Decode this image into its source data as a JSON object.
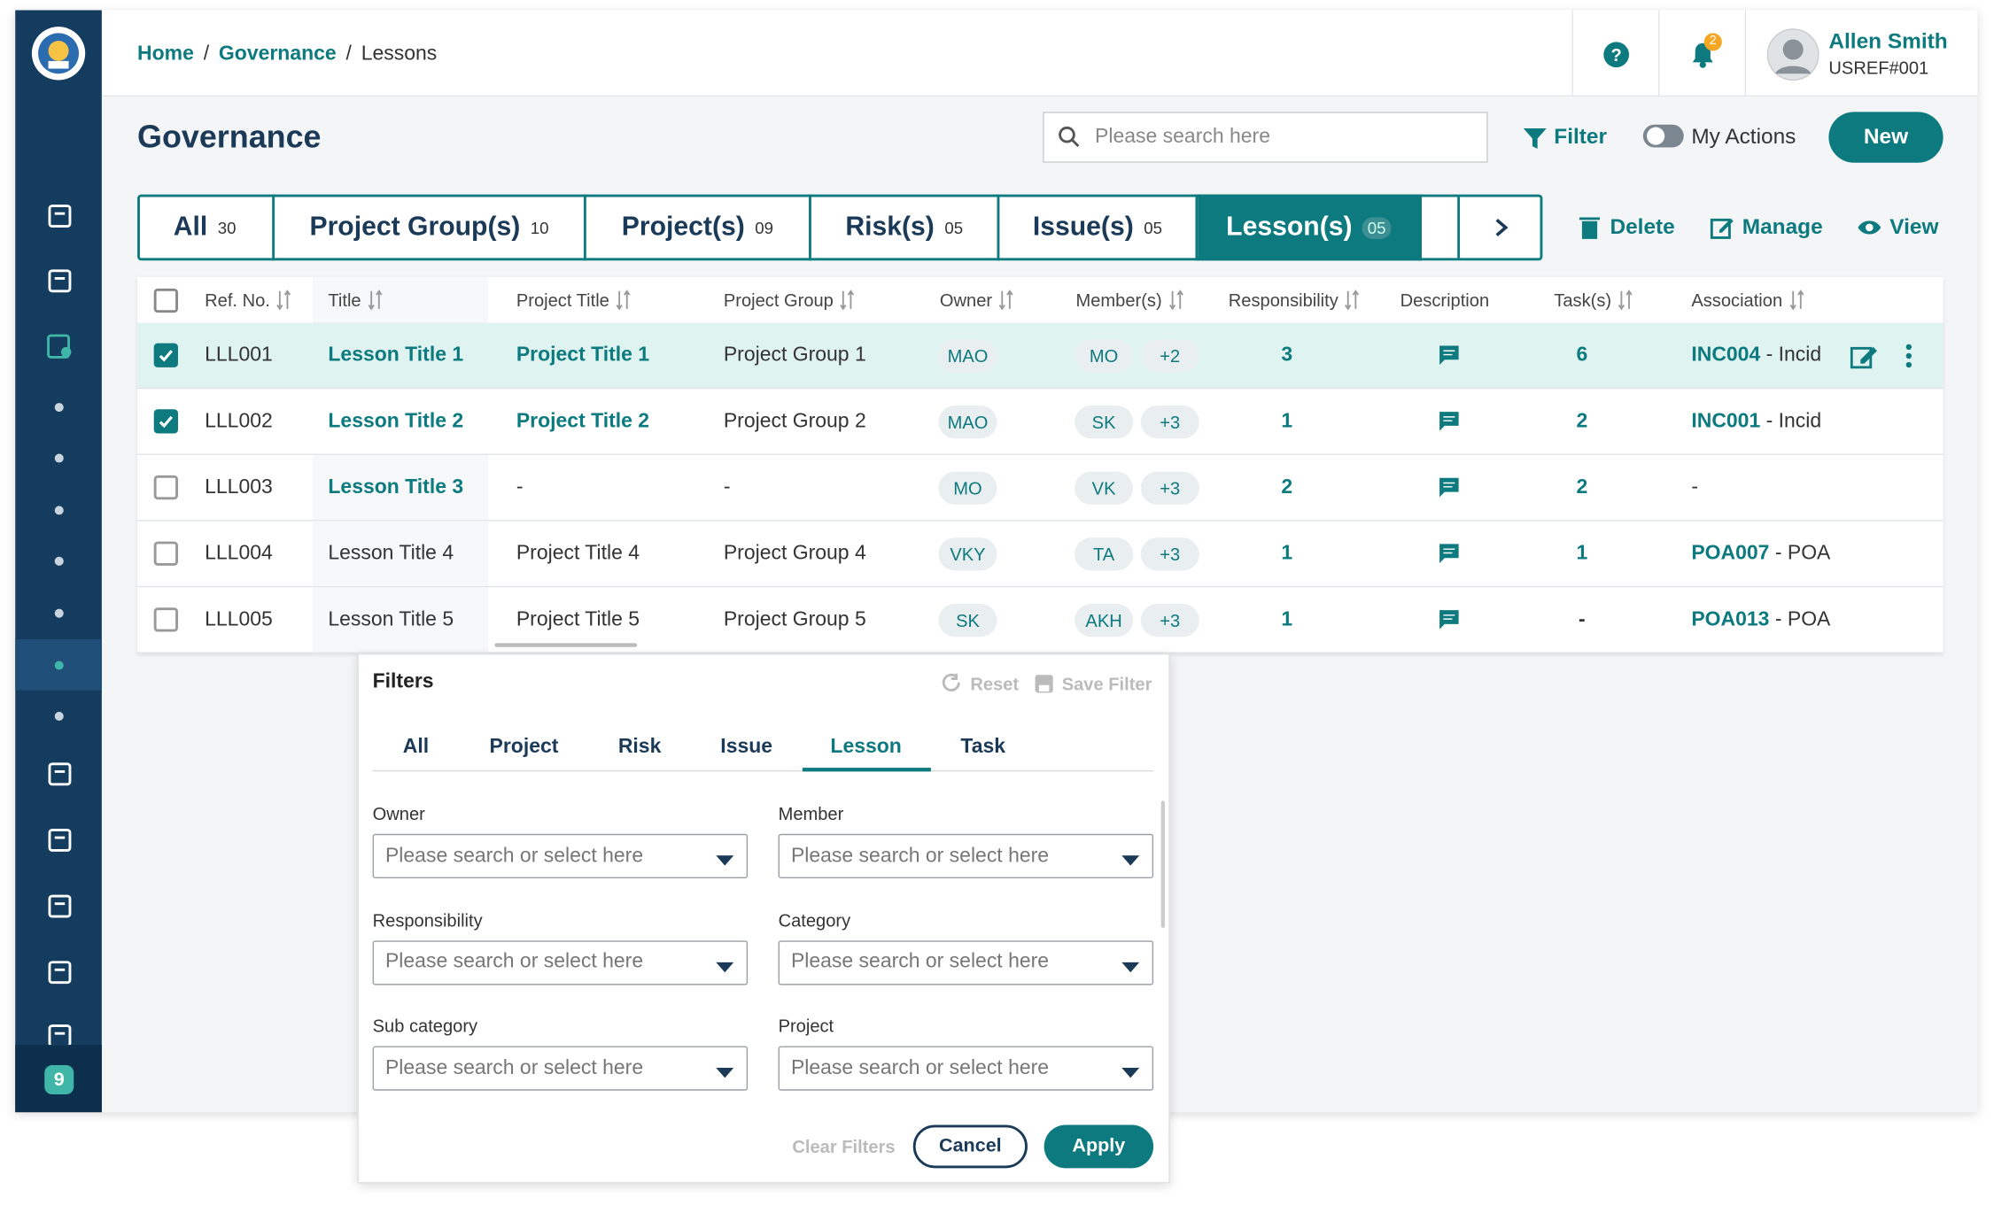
{
  "header": {
    "breadcrumbs": [
      "Home",
      "Governance",
      "Lessons"
    ],
    "separator": "/",
    "notification_count": "2",
    "user": {
      "name": "Allen Smith",
      "ref": "USREF#001"
    }
  },
  "sidebar": {
    "badge": "9"
  },
  "toolbar": {
    "title": "Governance",
    "search_placeholder": "Please search here",
    "filter": "Filter",
    "my_actions": "My Actions",
    "new": "New"
  },
  "tabs": [
    {
      "label": "All",
      "count": "30"
    },
    {
      "label": "Project Group(s)",
      "count": "10"
    },
    {
      "label": "Project(s)",
      "count": "09"
    },
    {
      "label": "Risk(s)",
      "count": "05"
    },
    {
      "label": "Issue(s)",
      "count": "05"
    },
    {
      "label": "Lesson(s)",
      "count": "05",
      "active": true
    }
  ],
  "actions": [
    "Delete",
    "Manage",
    "View"
  ],
  "table": {
    "columns": [
      "Ref. No.",
      "Title",
      "Project Title",
      "Project Group",
      "Owner",
      "Member(s)",
      "Responsibility",
      "Description",
      "Task(s)",
      "Association"
    ],
    "rows": [
      {
        "checked": true,
        "ref": "LLL001",
        "title": "Lesson Title 1",
        "title_link": true,
        "project_title": "Project Title 1",
        "project_link": true,
        "project_group": "Project Group 1",
        "owner": "MAO",
        "member": "MO",
        "member_extra": "+2",
        "responsibility": "3",
        "tasks": "6",
        "association_code": "INC004",
        "association_text": " - Incid"
      },
      {
        "checked": true,
        "ref": "LLL002",
        "title": "Lesson Title 2",
        "title_link": true,
        "project_title": "Project Title 2",
        "project_link": true,
        "project_group": "Project Group 2",
        "owner": "MAO",
        "member": "SK",
        "member_extra": "+3",
        "responsibility": "1",
        "tasks": "2",
        "association_code": "INC001",
        "association_text": " - Incid"
      },
      {
        "checked": false,
        "ref": "LLL003",
        "title": "Lesson Title 3",
        "title_link": true,
        "project_title": "-",
        "project_link": false,
        "project_group": "-",
        "owner": "MO",
        "member": "VK",
        "member_extra": "+3",
        "responsibility": "2",
        "tasks": "2",
        "association_text": "-"
      },
      {
        "checked": false,
        "ref": "LLL004",
        "title": "Lesson Title 4",
        "title_link": false,
        "project_title": "Project Title 4",
        "project_link": false,
        "project_group": "Project Group 4",
        "owner": "VKY",
        "member": "TA",
        "member_extra": "+3",
        "responsibility": "1",
        "tasks": "1",
        "association_code": "POA007",
        "association_text": " - POA"
      },
      {
        "checked": false,
        "ref": "LLL005",
        "title": "Lesson Title 5",
        "title_link": false,
        "project_title": "Project Title 5",
        "project_link": false,
        "project_group": "Project Group 5",
        "owner": "SK",
        "member": "AKH",
        "member_extra": "+3",
        "responsibility": "1",
        "tasks": "-",
        "association_code": "POA013",
        "association_text": " - POA"
      }
    ]
  },
  "filters": {
    "title": "Filters",
    "reset": "Reset",
    "save": "Save Filter",
    "tabs": [
      "All",
      "Project",
      "Risk",
      "Issue",
      "Lesson",
      "Task"
    ],
    "active_tab": 4,
    "fields": [
      {
        "label": "Owner",
        "placeholder": "Please search or select here"
      },
      {
        "label": "Member",
        "placeholder": "Please search or select here"
      },
      {
        "label": "Responsibility",
        "placeholder": "Please search or select here"
      },
      {
        "label": "Category",
        "placeholder": "Please search or select here"
      },
      {
        "label": "Sub category",
        "placeholder": "Please search or select here"
      },
      {
        "label": "Project",
        "placeholder": "Please search or select here"
      }
    ],
    "clear": "Clear Filters",
    "cancel": "Cancel",
    "apply": "Apply"
  }
}
